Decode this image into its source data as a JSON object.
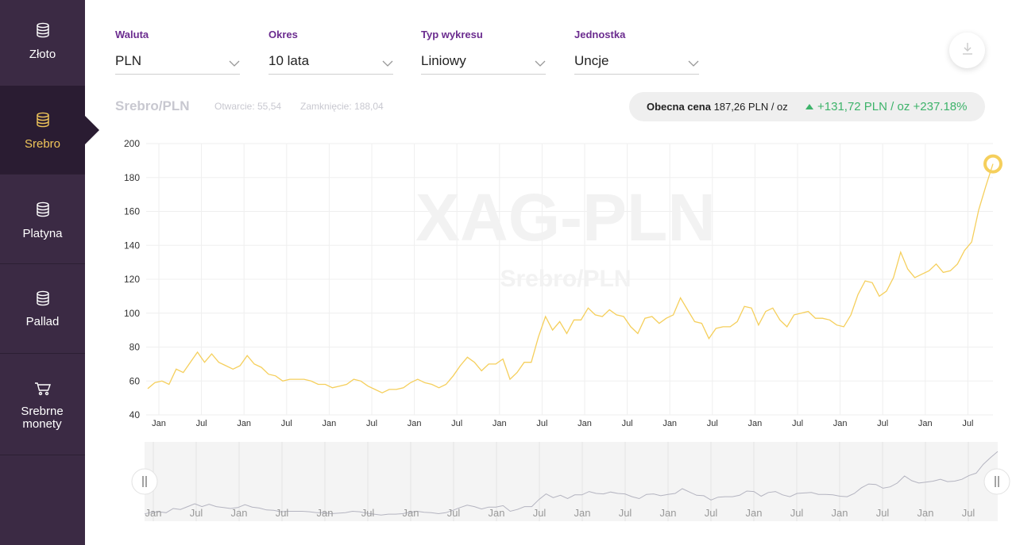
{
  "sidebar": {
    "items": [
      {
        "label": "Złoto",
        "icon": "coins-icon",
        "active": false
      },
      {
        "label": "Srebro",
        "icon": "coins-icon",
        "active": true
      },
      {
        "label": "Platyna",
        "icon": "coins-icon",
        "active": false
      },
      {
        "label": "Pallad",
        "icon": "coins-icon",
        "active": false
      },
      {
        "label": "Srebrne monety",
        "icon": "cart-icon",
        "active": false
      }
    ]
  },
  "controls": {
    "currency": {
      "label": "Waluta",
      "value": "PLN"
    },
    "period": {
      "label": "Okres",
      "value": "10 lata"
    },
    "chart_type": {
      "label": "Typ wykresu",
      "value": "Liniowy"
    },
    "unit": {
      "label": "Jednostka",
      "value": "Uncje"
    },
    "download_icon": "download-icon"
  },
  "summary": {
    "pair": "Srebro/PLN",
    "open": "Otwarcie: 55,54",
    "close": "Zamknięcie: 188,04",
    "current_label": "Obecna cena",
    "current_value": "187,26 PLN / oz",
    "change": "+131,72 PLN / oz +237.18%"
  },
  "watermark": {
    "main": "XAG-PLN",
    "sub": "Srebro/PLN"
  },
  "colors": {
    "sidebar": "#3b2a44",
    "active": "#f0c65a",
    "line": "#f5cf5c",
    "accent_label": "#6b2c8f",
    "positive": "#3db36a"
  },
  "chart_data": {
    "type": "line",
    "ylim": [
      40,
      200
    ],
    "yticks": [
      40,
      60,
      80,
      100,
      120,
      140,
      160,
      180,
      200
    ],
    "x_tick_labels": [
      "Jan",
      "Jul",
      "Jan",
      "Jul",
      "Jan",
      "Jul",
      "Jan",
      "Jul",
      "Jan",
      "Jul",
      "Jan",
      "Jul",
      "Jan",
      "Jul",
      "Jan",
      "Jul",
      "Jan",
      "Jul",
      "Jan",
      "Jul"
    ],
    "series": [
      {
        "values": [
          55.5,
          59,
          60,
          58,
          67,
          65,
          71,
          77,
          71,
          76,
          71,
          69,
          67,
          69,
          75,
          70,
          68,
          64,
          63,
          60,
          61,
          61,
          61,
          60,
          58,
          58,
          56,
          57,
          58,
          61,
          60,
          57,
          55,
          53,
          55,
          55,
          56,
          59,
          61,
          59,
          58,
          56,
          58,
          63,
          69,
          74,
          71,
          66,
          70,
          70,
          73,
          61,
          65,
          71,
          71,
          86,
          98,
          90,
          95,
          88,
          96,
          96,
          103,
          99,
          98,
          102,
          99,
          98,
          92,
          88,
          97,
          98,
          94,
          97,
          99,
          109,
          102,
          95,
          94,
          85,
          91,
          92,
          92,
          95,
          104,
          103,
          93,
          101,
          103,
          96,
          92,
          99,
          100,
          101,
          97,
          97,
          96,
          93,
          92,
          99,
          111,
          119,
          118,
          110,
          113,
          121,
          136,
          126,
          121,
          123,
          125,
          129,
          124,
          125,
          129,
          137,
          142,
          161,
          175,
          188
        ]
      }
    ]
  },
  "navigator": {
    "x_tick_labels": [
      "Jan",
      "Jul",
      "Jan",
      "Jul",
      "Jan",
      "Jul",
      "Jan",
      "Jul",
      "Jan",
      "Jul",
      "Jan",
      "Jul",
      "Jan",
      "Jul",
      "Jan",
      "Jul",
      "Jan",
      "Jul",
      "Jan",
      "Jul"
    ],
    "handle_icon": "drag-handle-icon"
  }
}
